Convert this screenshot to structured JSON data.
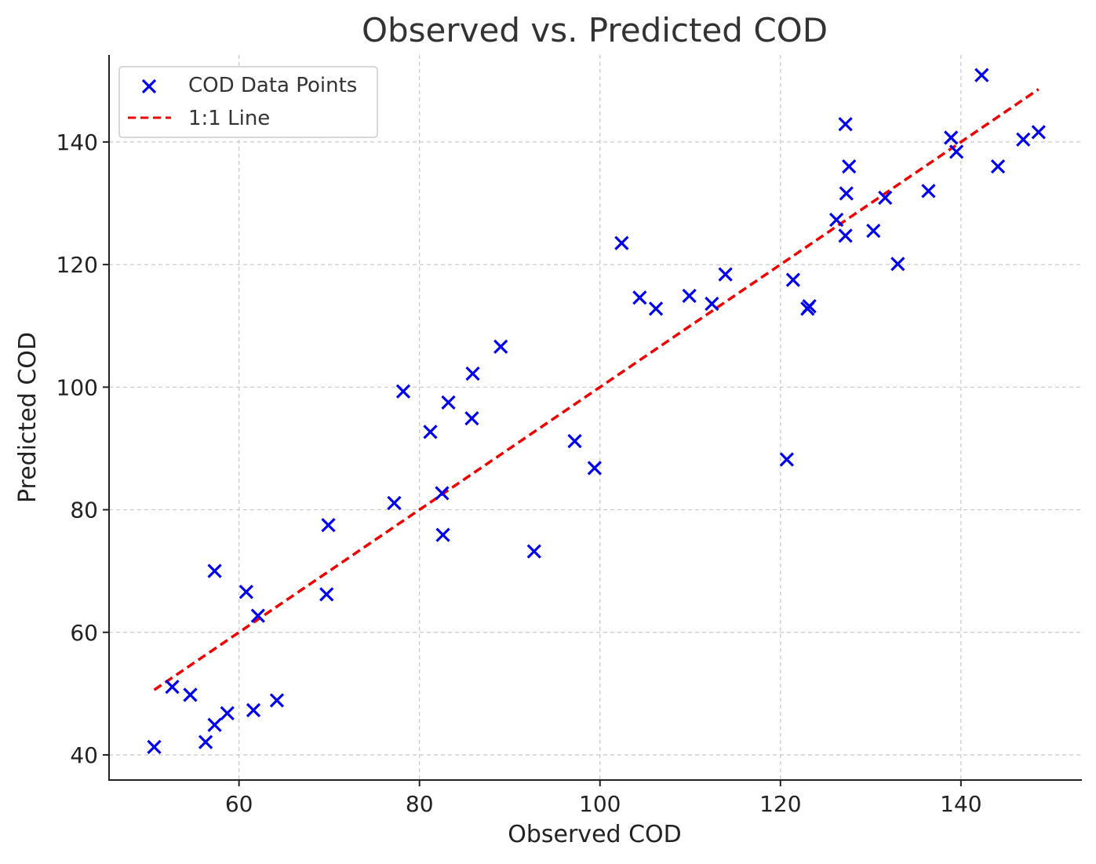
{
  "chart_data": {
    "type": "scatter",
    "title": "Observed vs. Predicted COD",
    "xlabel": "Observed COD",
    "ylabel": "Predicted COD",
    "xlim": [
      45.6,
      153.4
    ],
    "ylim": [
      35.9,
      154.2
    ],
    "xticks": [
      60,
      80,
      100,
      120,
      140
    ],
    "yticks": [
      40,
      60,
      80,
      100,
      120,
      140
    ],
    "grid": true,
    "legend_position": "top-left",
    "series": [
      {
        "name": "COD Data Points",
        "marker": "x",
        "color": "#0000ee",
        "points": [
          [
            50.6,
            41.3
          ],
          [
            52.6,
            51.1
          ],
          [
            54.6,
            49.8
          ],
          [
            56.3,
            42.1
          ],
          [
            57.3,
            44.9
          ],
          [
            57.3,
            70.0
          ],
          [
            58.7,
            46.8
          ],
          [
            60.8,
            66.6
          ],
          [
            61.6,
            47.3
          ],
          [
            62.1,
            62.7
          ],
          [
            64.2,
            48.9
          ],
          [
            69.7,
            66.2
          ],
          [
            69.9,
            77.5
          ],
          [
            77.2,
            81.1
          ],
          [
            78.2,
            99.3
          ],
          [
            81.2,
            92.7
          ],
          [
            82.5,
            82.7
          ],
          [
            82.6,
            75.9
          ],
          [
            83.2,
            97.5
          ],
          [
            85.8,
            94.9
          ],
          [
            85.9,
            102.2
          ],
          [
            89.0,
            106.6
          ],
          [
            92.7,
            73.2
          ],
          [
            97.2,
            91.2
          ],
          [
            99.4,
            86.8
          ],
          [
            102.4,
            123.5
          ],
          [
            104.4,
            114.6
          ],
          [
            106.2,
            112.8
          ],
          [
            109.9,
            114.9
          ],
          [
            112.4,
            113.6
          ],
          [
            113.9,
            118.4
          ],
          [
            120.7,
            88.2
          ],
          [
            121.4,
            117.5
          ],
          [
            123.0,
            112.8
          ],
          [
            123.2,
            113.2
          ],
          [
            126.2,
            127.3
          ],
          [
            127.2,
            124.7
          ],
          [
            127.2,
            142.9
          ],
          [
            127.3,
            131.6
          ],
          [
            127.6,
            136.0
          ],
          [
            130.3,
            125.5
          ],
          [
            131.6,
            130.9
          ],
          [
            133.0,
            120.1
          ],
          [
            136.4,
            132.0
          ],
          [
            138.9,
            140.7
          ],
          [
            139.5,
            138.4
          ],
          [
            142.3,
            150.9
          ],
          [
            144.1,
            136.0
          ],
          [
            146.9,
            140.4
          ],
          [
            148.6,
            141.6
          ]
        ]
      },
      {
        "name": "1:1 Line",
        "line_style": "dashed",
        "color": "#ee0000",
        "x": [
          50.6,
          148.6
        ],
        "y": [
          50.6,
          148.6
        ]
      }
    ]
  }
}
